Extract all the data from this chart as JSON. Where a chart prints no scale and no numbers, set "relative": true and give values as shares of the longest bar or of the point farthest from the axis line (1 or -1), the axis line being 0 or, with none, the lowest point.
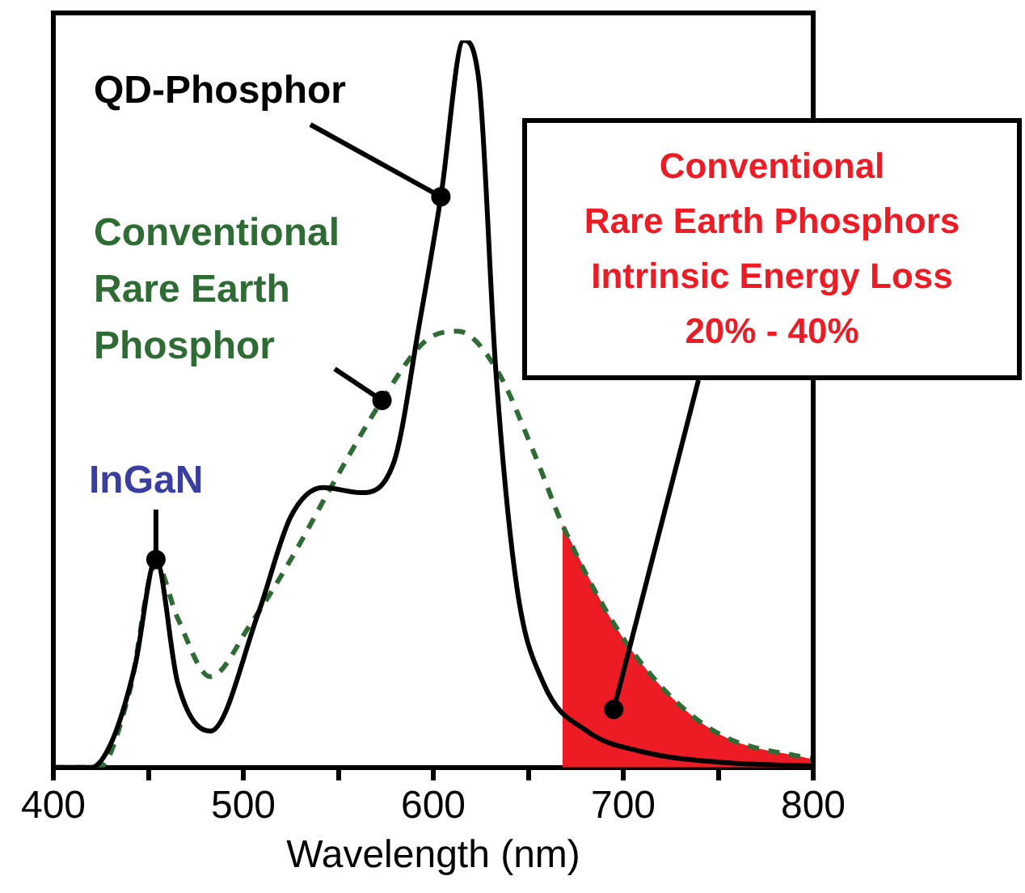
{
  "chart_data": {
    "type": "line",
    "xlabel": "Wavelength (nm)",
    "relative": true,
    "xlim": [
      400,
      800
    ],
    "xticks": [
      400,
      {
        "value": 450,
        "label": null
      },
      500,
      {
        "value": 550,
        "label": null
      },
      600,
      {
        "value": 650,
        "label": null
      },
      700,
      {
        "value": 750,
        "label": null
      },
      800
    ],
    "grid": false,
    "legend": false,
    "marker": "none",
    "series": [
      {
        "name": "QD-Phosphor",
        "color": "#000000",
        "line_style": "solid",
        "x": [
          400,
          420,
          431,
          443,
          454,
          465.5,
          482.6,
          508,
          525,
          542,
          562,
          579,
          593,
          604,
          616,
          624,
          633,
          644,
          658,
          681,
          709.5,
          752,
          800
        ],
        "values": [
          0,
          0,
          0.037,
          0.14,
          0.286,
          0.116,
          0.05,
          0.213,
          0.345,
          0.385,
          0.378,
          0.418,
          0.615,
          0.785,
          1.0,
          0.945,
          0.543,
          0.248,
          0.116,
          0.05,
          0.022,
          0.007,
          0.002
        ]
      },
      {
        "name": "Conventional\nRare Earth\nPhosphor",
        "color": "#2e6b35",
        "line_style": "dashed",
        "x": [
          400,
          424,
          440,
          454,
          465.5,
          482.6,
          504,
          525,
          545,
          573,
          596,
          613,
          633,
          653,
          668,
          695,
          723,
          752,
          800
        ],
        "values": [
          0,
          0,
          0.103,
          0.28,
          0.205,
          0.125,
          0.198,
          0.286,
          0.38,
          0.505,
          0.587,
          0.6,
          0.549,
          0.433,
          0.334,
          0.198,
          0.103,
          0.044,
          0.011
        ]
      },
      {
        "type": "area",
        "color": "#ed1c24",
        "x": [
          668,
          695,
          723,
          752,
          800
        ],
        "values": [
          0.334,
          0.198,
          0.103,
          0.044,
          0.011
        ]
      }
    ],
    "annotations": [
      {
        "text": "InGaN",
        "x": 454,
        "y": 0.286
      },
      {
        "text": "Conventional\nRare Earth Phosphors\nIntrinsic Energy Loss\n20% - 40%",
        "x": 695,
        "y": 0.08
      }
    ]
  }
}
